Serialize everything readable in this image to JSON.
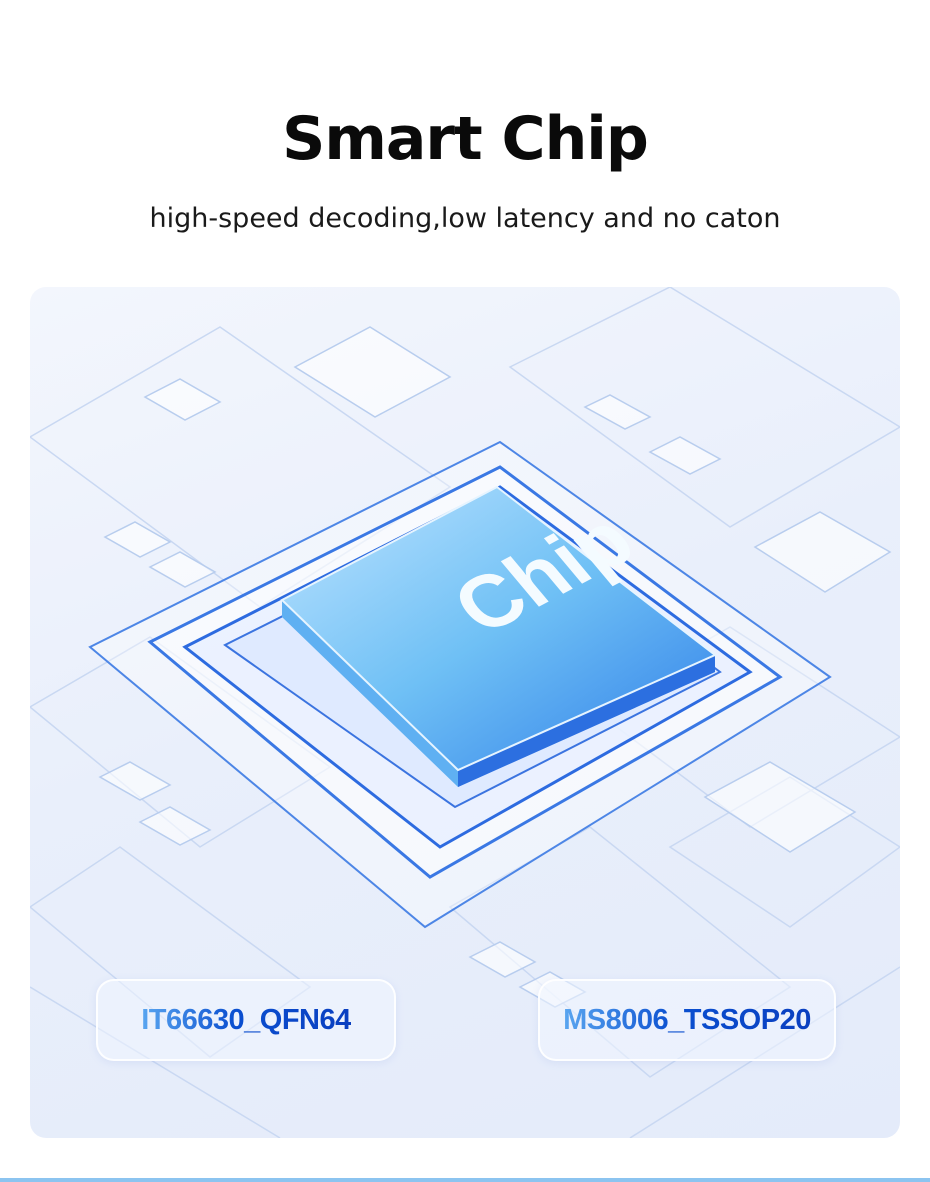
{
  "header": {
    "title": "Smart Chip",
    "subtitle": "high-speed decoding,low latency and no caton"
  },
  "illustration": {
    "chip_text": "Chip",
    "accent_color": "#2a6fe8"
  },
  "chip_labels": [
    {
      "text": "IT66630_QFN64"
    },
    {
      "text": "MS8006_TSSOP20"
    }
  ]
}
